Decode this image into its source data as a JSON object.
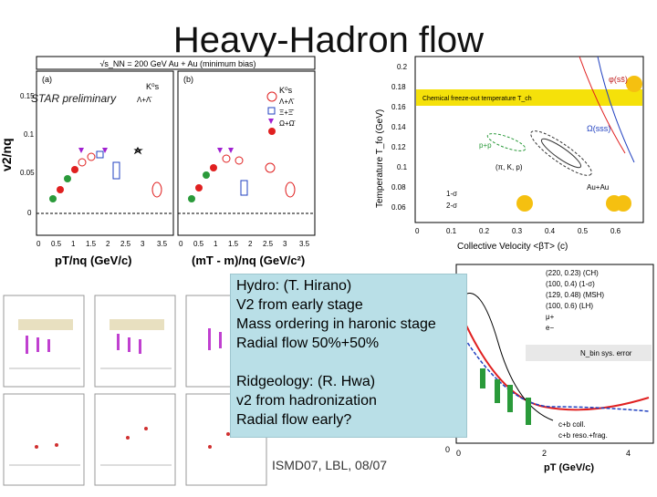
{
  "slide": {
    "title": "Heavy-Hadron flow",
    "footer": "ISMD07, LBL, 08/07"
  },
  "left_plot": {
    "header": "√s_NN = 200 GeV Au + Au (minimum bias)",
    "star_label": "STAR preliminary",
    "ylabel": "v2/nq",
    "panel_a": "(a)",
    "panel_b": "(b)",
    "xlabel_a": "pT/nq (GeV/c)",
    "xlabel_b": "(mT - m)/nq (GeV/c²)",
    "yticks": [
      "0.15",
      "0.1",
      "0.05",
      "0"
    ],
    "xticks": [
      "0",
      "0.5",
      "1",
      "1.5",
      "2",
      "2.5",
      "3",
      "3.5"
    ],
    "legend_a": [
      "K⁰s",
      "Λ+Λ̄"
    ],
    "legend_b": [
      "K⁰s",
      "Λ+Λ̄",
      "Ξ+Ξ̄",
      "Ω+Ω̄"
    ]
  },
  "right_plot": {
    "ylabel": "Temperature T_fo (GeV)",
    "xlabel": "Collective Velocity <βT> (c)",
    "band_label": "Chemical freeze-out temperature T_ch",
    "yticks": [
      "0.2",
      "0.18",
      "0.16",
      "0.14",
      "0.12",
      "0.1",
      "0.08",
      "0.06"
    ],
    "xticks": [
      "0",
      "0.1",
      "0.2",
      "0.3",
      "0.4",
      "0.5",
      "0.6"
    ],
    "labels": [
      "φ(ss̄)",
      "Ω(sss)",
      "p+p",
      "(π, K, p)",
      "Au+Au"
    ],
    "legend": [
      "1-σ",
      "2-σ"
    ]
  },
  "bottom_right_plot": {
    "legend": [
      "(220, 0.23) (CH)",
      "(100, 0.4) (1-σ)",
      "(129, 0.48) (MSH)",
      "(100, 0.6) (LH)",
      "μ+",
      "e−"
    ],
    "syst_label": "N_bin sys. error",
    "curve_labels": [
      "c+b coll.",
      "c+b reso.+frag."
    ],
    "xlabel": "pT (GeV/c)",
    "xticks": [
      "0",
      "2",
      "4"
    ],
    "ytick": "0"
  },
  "note": {
    "lines": [
      "Hydro: (T. Hirano)",
      "V2 from early stage",
      "Mass ordering in haronic stage",
      "Radial flow 50%+50%",
      "",
      "Ridgeology: (R. Hwa)",
      "v2 from hadronization",
      "Radial flow early?"
    ]
  },
  "colors": {
    "note_bg": "#b9dfe7",
    "band": "#f5e10a"
  }
}
